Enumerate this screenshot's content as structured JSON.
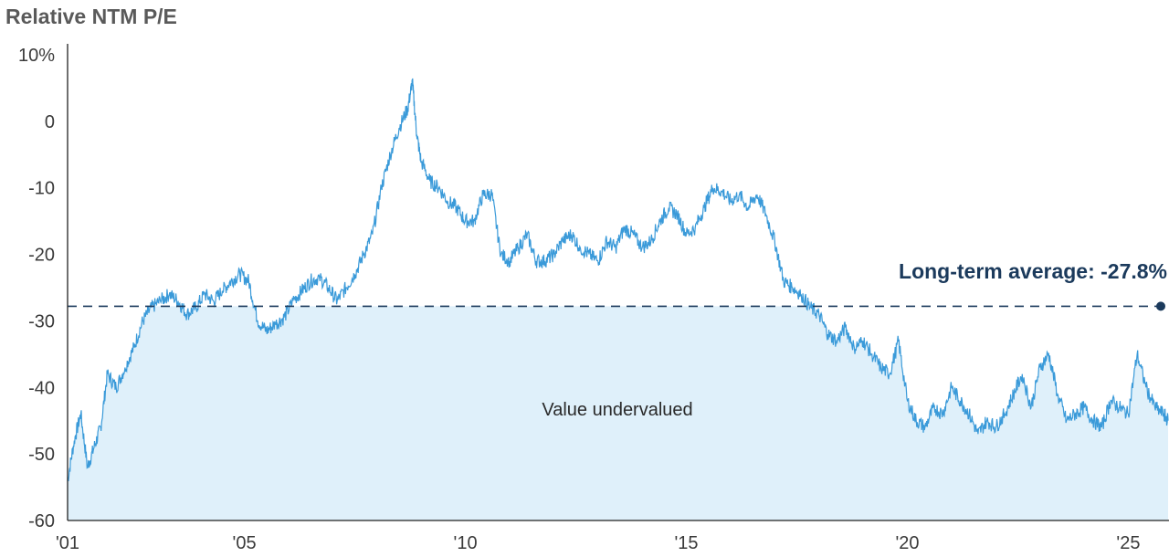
{
  "chart_data": {
    "type": "area",
    "title": "Relative NTM P/E",
    "ylim": [
      -60,
      10
    ],
    "xlim": [
      2001,
      2025.9
    ],
    "y_ticks": [
      {
        "value": 10,
        "label": "10%"
      },
      {
        "value": 0,
        "label": "0"
      },
      {
        "value": -10,
        "label": "-10"
      },
      {
        "value": -20,
        "label": "-20"
      },
      {
        "value": -30,
        "label": "-30"
      },
      {
        "value": -40,
        "label": "-40"
      },
      {
        "value": -50,
        "label": "-50"
      },
      {
        "value": -60,
        "label": "-60"
      }
    ],
    "x_ticks": [
      {
        "value": 2001,
        "label": "'01"
      },
      {
        "value": 2005,
        "label": "'05"
      },
      {
        "value": 2010,
        "label": "'10"
      },
      {
        "value": 2015,
        "label": "'15"
      },
      {
        "value": 2020,
        "label": "'20"
      },
      {
        "value": 2025,
        "label": "'25"
      }
    ],
    "average": {
      "value": -27.8,
      "label": "Long-term average: -27.8%"
    },
    "region_label": "Value undervalued",
    "colors": {
      "line": "#3a9ad9",
      "fill": "#dff0fa",
      "average": "#1b3a5c",
      "axis": "#222222"
    },
    "grid": false,
    "series": [
      {
        "x": [
          2001.0,
          2001.15,
          2001.3,
          2001.45,
          2001.6,
          2001.75,
          2001.9,
          2002.1,
          2002.3,
          2002.5,
          2002.7,
          2002.9,
          2003.1,
          2003.3,
          2003.5,
          2003.7,
          2003.9,
          2004.1,
          2004.3,
          2004.5,
          2004.7,
          2004.9,
          2005.1,
          2005.3,
          2005.5,
          2005.7,
          2005.9,
          2006.1,
          2006.3,
          2006.5,
          2006.7,
          2006.9,
          2007.1,
          2007.3,
          2007.5,
          2007.7,
          2007.9,
          2008.1,
          2008.3,
          2008.5,
          2008.7,
          2008.8,
          2008.9,
          2009.0,
          2009.2,
          2009.4,
          2009.6,
          2009.8,
          2010.0,
          2010.2,
          2010.4,
          2010.6,
          2010.8,
          2011.0,
          2011.2,
          2011.4,
          2011.6,
          2011.8,
          2012.0,
          2012.2,
          2012.4,
          2012.6,
          2012.8,
          2013.0,
          2013.2,
          2013.4,
          2013.6,
          2013.8,
          2014.0,
          2014.2,
          2014.4,
          2014.6,
          2014.8,
          2015.0,
          2015.2,
          2015.4,
          2015.6,
          2015.8,
          2016.0,
          2016.2,
          2016.4,
          2016.6,
          2016.8,
          2017.0,
          2017.2,
          2017.4,
          2017.6,
          2017.8,
          2018.0,
          2018.2,
          2018.4,
          2018.6,
          2018.8,
          2019.0,
          2019.2,
          2019.4,
          2019.6,
          2019.8,
          2020.0,
          2020.2,
          2020.4,
          2020.6,
          2020.8,
          2021.0,
          2021.2,
          2021.4,
          2021.6,
          2021.8,
          2022.0,
          2022.2,
          2022.4,
          2022.6,
          2022.8,
          2023.0,
          2023.2,
          2023.4,
          2023.6,
          2023.8,
          2024.0,
          2024.2,
          2024.4,
          2024.6,
          2024.8,
          2025.0,
          2025.2,
          2025.4,
          2025.6,
          2025.8,
          2025.9
        ],
        "values": [
          -54,
          -48,
          -44,
          -52,
          -49,
          -46,
          -38,
          -40,
          -37,
          -34,
          -30,
          -28,
          -27,
          -26,
          -27,
          -29,
          -28,
          -26,
          -27,
          -25.5,
          -24,
          -23,
          -24,
          -30,
          -31.5,
          -30.5,
          -29.5,
          -27,
          -25.5,
          -24,
          -23.5,
          -25,
          -27,
          -25,
          -23,
          -20,
          -17,
          -10,
          -5,
          -1,
          2,
          6,
          -2,
          -6,
          -9,
          -10,
          -12,
          -13,
          -15,
          -15,
          -11,
          -11,
          -20,
          -21,
          -19,
          -17,
          -21,
          -21,
          -20,
          -18,
          -17,
          -19,
          -20,
          -21,
          -18,
          -19,
          -16,
          -17,
          -19,
          -18,
          -15,
          -13,
          -14,
          -17,
          -16,
          -13,
          -10,
          -10.5,
          -12,
          -11,
          -13,
          -11,
          -14,
          -18,
          -24,
          -25,
          -26,
          -28,
          -29,
          -32,
          -33,
          -31,
          -34,
          -33,
          -35,
          -37,
          -38,
          -33,
          -42,
          -45,
          -46,
          -43,
          -44,
          -40,
          -42,
          -44,
          -47,
          -45,
          -46,
          -44,
          -41,
          -38,
          -43,
          -37,
          -35,
          -41,
          -45,
          -44,
          -43,
          -45,
          -46,
          -42,
          -43,
          -44,
          -35,
          -40,
          -43,
          -44,
          -45
        ]
      }
    ]
  }
}
